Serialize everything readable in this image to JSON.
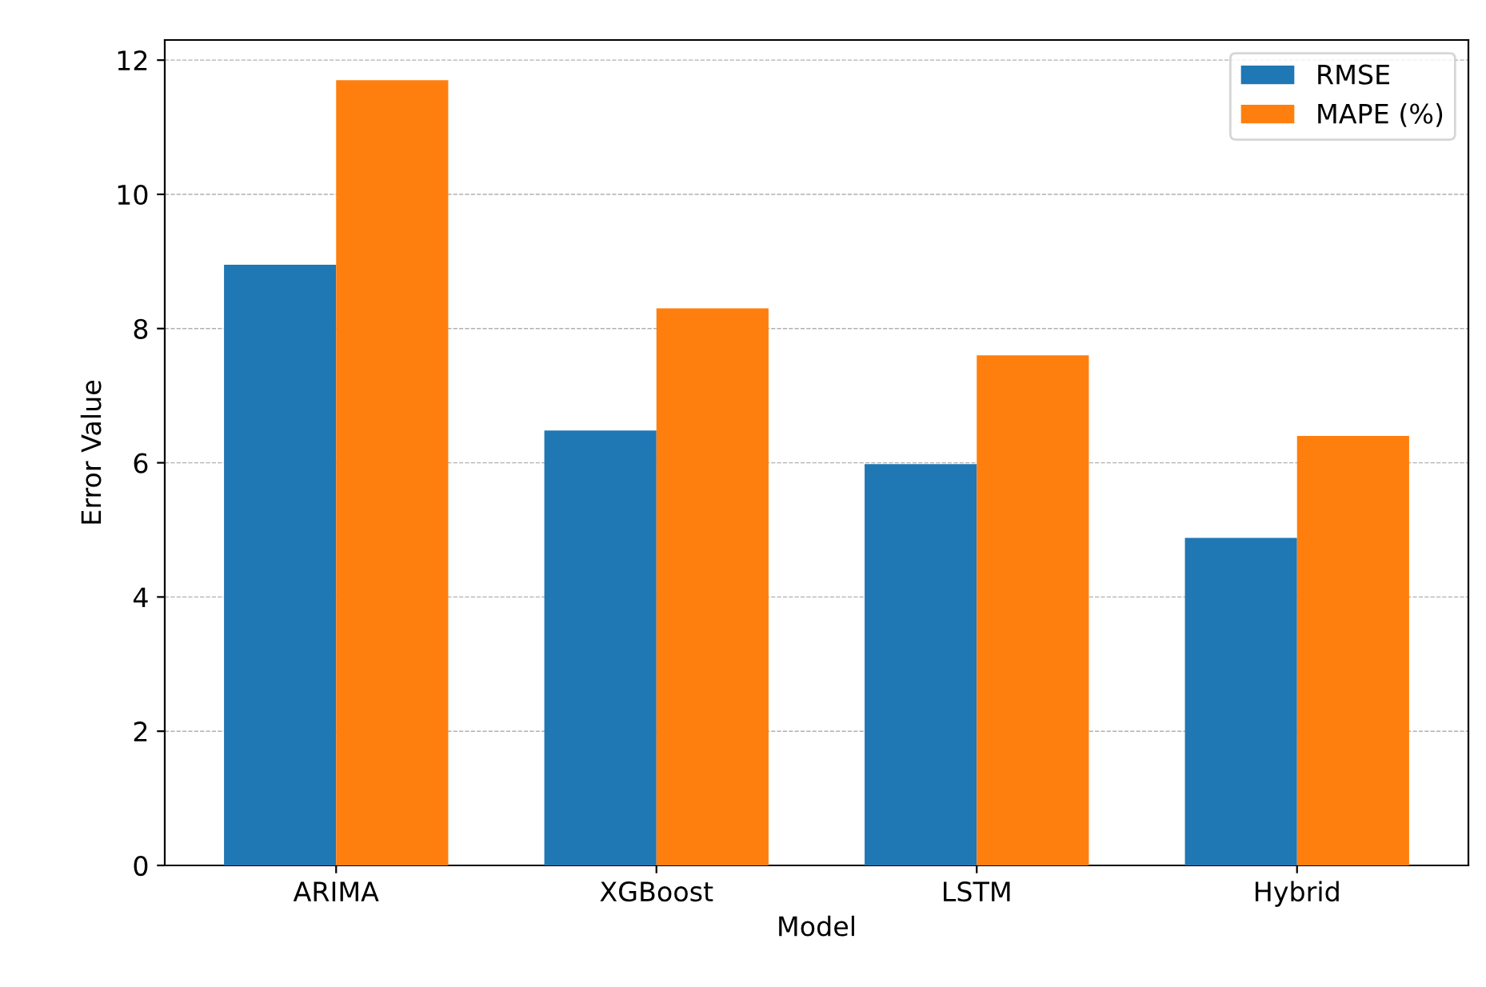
{
  "chart_data": {
    "type": "bar",
    "xlabel": "Model",
    "ylabel": "Error Value",
    "categories": [
      "ARIMA",
      "XGBoost",
      "LSTM",
      "Hybrid"
    ],
    "series": [
      {
        "name": "RMSE",
        "color": "#1f77b4",
        "values": [
          8.95,
          6.48,
          5.98,
          4.88
        ]
      },
      {
        "name": "MAPE (%)",
        "color": "#ff7f0e",
        "values": [
          11.7,
          8.3,
          7.6,
          6.4
        ]
      }
    ],
    "ylim": [
      0,
      12.3
    ],
    "yticks": [
      0,
      2,
      4,
      6,
      8,
      10,
      12
    ],
    "grid": "y",
    "legend": "top right"
  }
}
